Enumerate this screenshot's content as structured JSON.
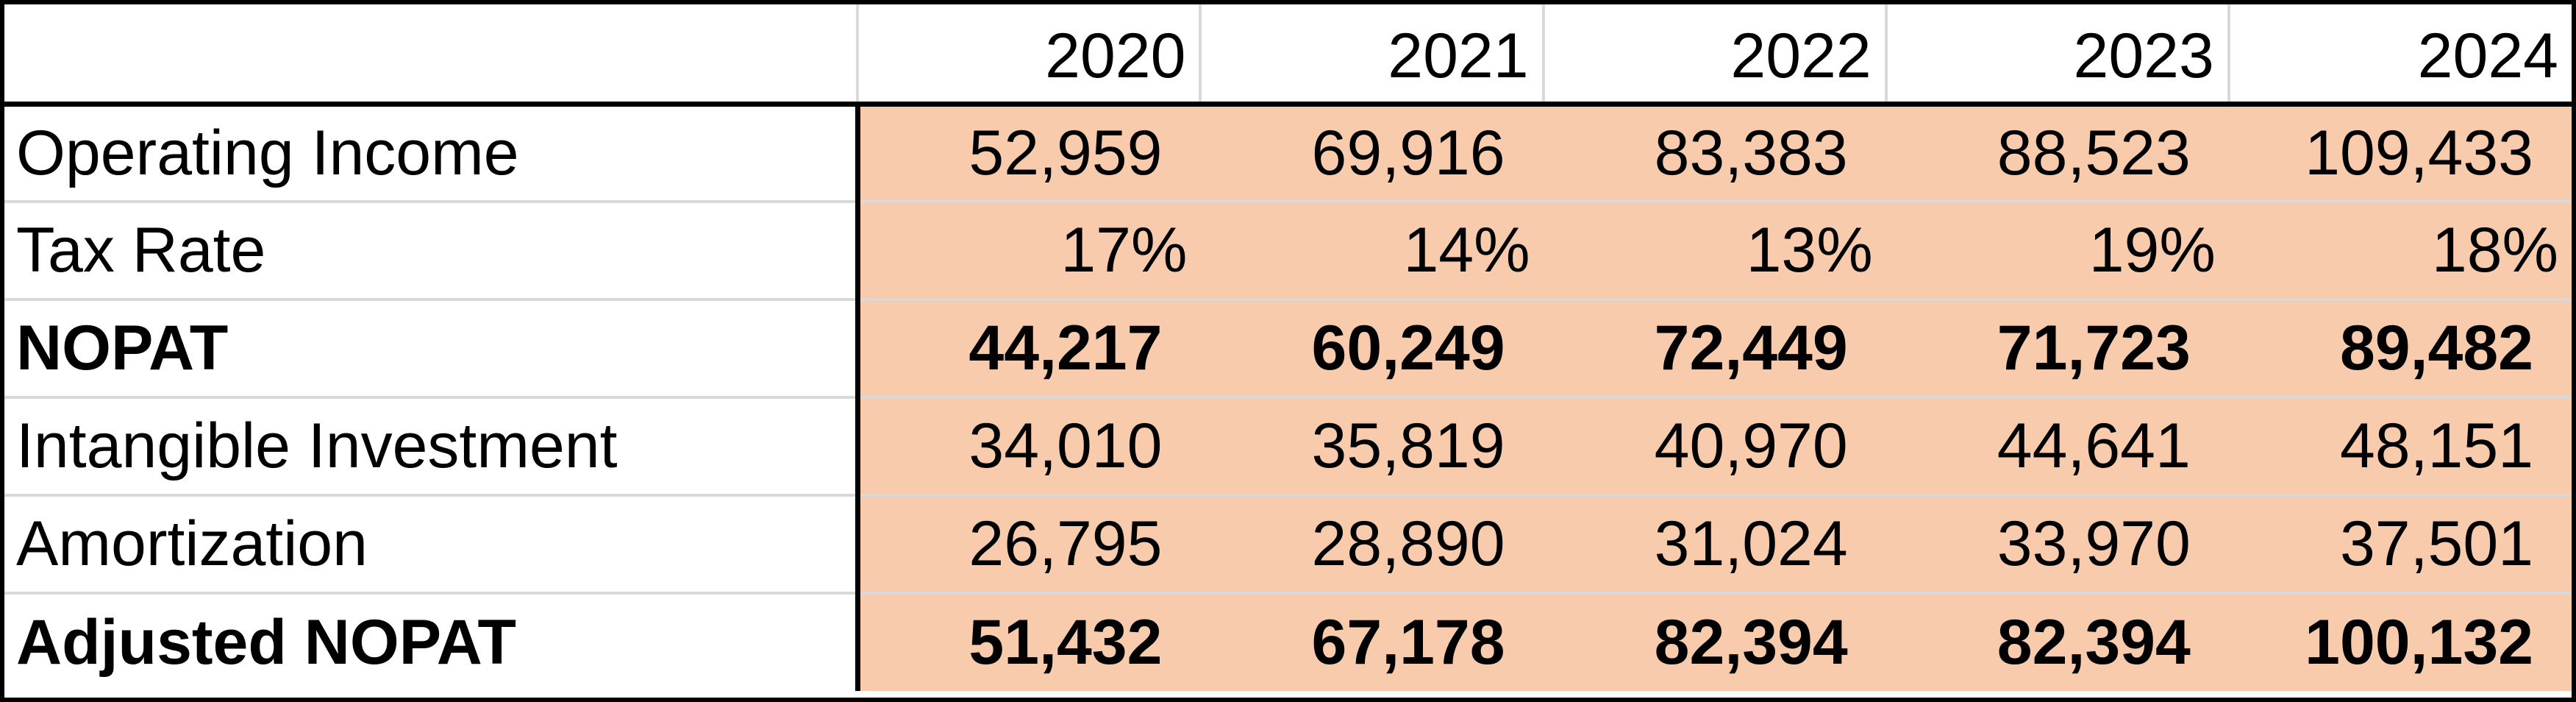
{
  "table": {
    "corner_label": "",
    "years": [
      "2020",
      "2021",
      "2022",
      "2023",
      "2024"
    ],
    "rows": [
      {
        "label": "Operating Income",
        "bold": false,
        "values": [
          "52,959",
          "69,916",
          "83,383",
          "88,523",
          "109,433"
        ]
      },
      {
        "label": "Tax Rate",
        "bold": false,
        "values": [
          "17%",
          "14%",
          "13%",
          "19%",
          "18%"
        ]
      },
      {
        "label": "NOPAT",
        "bold": true,
        "values": [
          "44,217",
          "60,249",
          "72,449",
          "71,723",
          "89,482"
        ]
      },
      {
        "label": "Intangible Investment",
        "bold": false,
        "values": [
          "34,010",
          "35,819",
          "40,970",
          "44,641",
          "48,151"
        ]
      },
      {
        "label": "Amortization",
        "bold": false,
        "values": [
          "26,795",
          "28,890",
          "31,024",
          "33,970",
          "37,501"
        ]
      },
      {
        "label": "Adjusted NOPAT",
        "bold": true,
        "values": [
          "51,432",
          "67,178",
          "82,394",
          "82,394",
          "100,132"
        ]
      }
    ]
  },
  "colors": {
    "highlight_fill": "#f8cbad",
    "gridline": "#d9d9d9",
    "border": "#000000"
  }
}
